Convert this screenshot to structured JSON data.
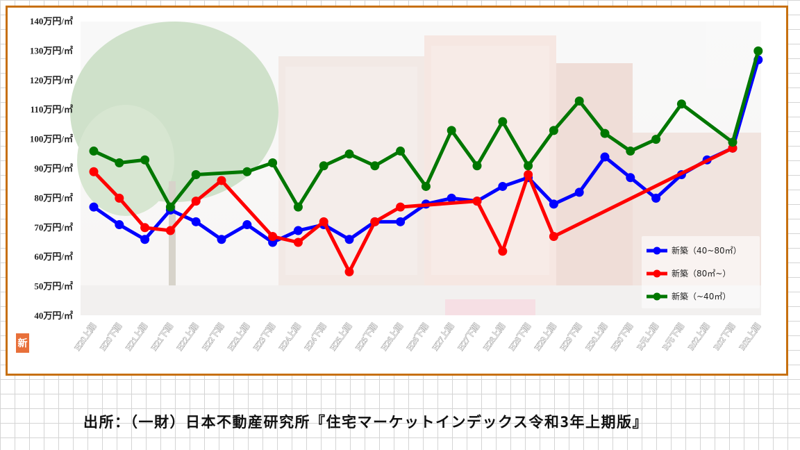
{
  "chart_data": {
    "type": "line",
    "categories": [
      "H20上期",
      "H20下期",
      "H21上期",
      "H21下期",
      "H22上期",
      "H22下期",
      "H23上期",
      "H23下期",
      "H24上期",
      "H24下期",
      "H25上期",
      "H25下期",
      "H26上期",
      "H26下期",
      "H27上期",
      "H27下期",
      "H28上期",
      "H28下期",
      "H29上期",
      "H29下期",
      "H30上期",
      "H30下期",
      "R元上期",
      "R元下期",
      "R02上期",
      "R02下期",
      "R03上期"
    ],
    "y_ticks": [
      "40万円/㎡",
      "50万円/㎡",
      "60万円/㎡",
      "70万円/㎡",
      "80万円/㎡",
      "90万円/㎡",
      "100万円/㎡",
      "110万円/㎡",
      "120万円/㎡",
      "130万円/㎡",
      "140万円/㎡"
    ],
    "ylim": [
      40,
      140
    ],
    "series": [
      {
        "name": "新築（40~80㎡）",
        "color": "#0000ff",
        "values": [
          77,
          71,
          66,
          76,
          72,
          66,
          71,
          65,
          69,
          71,
          66,
          72,
          72,
          78,
          80,
          79,
          84,
          87,
          78,
          82,
          94,
          87,
          80,
          88,
          93,
          97,
          127
        ]
      },
      {
        "name": "新築（80㎡~）",
        "color": "#ff0000",
        "values": [
          89,
          80,
          70,
          69,
          79,
          86,
          null,
          67,
          65,
          72,
          55,
          72,
          77,
          null,
          null,
          79,
          62,
          88,
          67,
          null,
          null,
          null,
          null,
          null,
          null,
          97,
          null
        ]
      },
      {
        "name": "新築（~40㎡）",
        "color": "#007700",
        "values": [
          96,
          92,
          93,
          77,
          88,
          null,
          89,
          92,
          77,
          91,
          95,
          91,
          96,
          84,
          103,
          91,
          106,
          91,
          103,
          113,
          102,
          96,
          100,
          112,
          null,
          99,
          130
        ]
      }
    ],
    "legend_position": "bottom-right",
    "grid": false
  },
  "logo_text": "新",
  "source_text": "出所：（一財）日本不動産研究所『住宅マーケットインデックス令和3年上期版』",
  "colors": {
    "frame": "#c7700f",
    "logo": "#e8703a"
  },
  "background_image": "apartment-building-photo"
}
